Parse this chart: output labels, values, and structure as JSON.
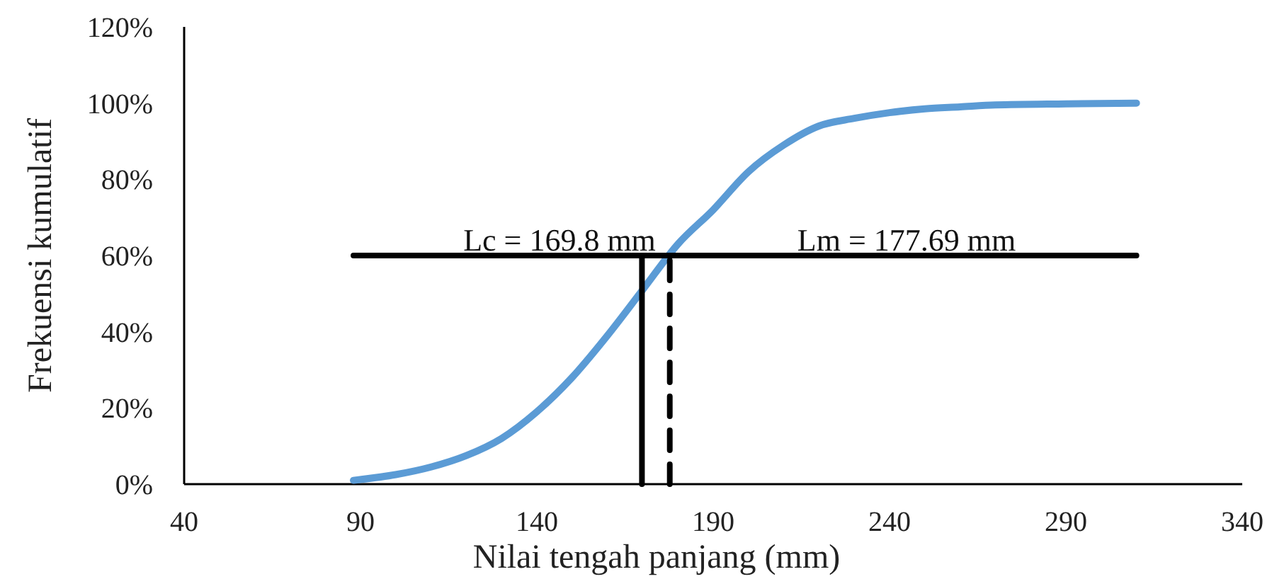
{
  "chart_data": {
    "type": "line",
    "xlabel": "Nilai tengah panjang (mm)",
    "ylabel": "Frekuensi kumulatif",
    "xlim": [
      40,
      340
    ],
    "xticks": [
      40,
      90,
      140,
      190,
      240,
      290,
      340
    ],
    "ylim": [
      0,
      120
    ],
    "yticks": [
      {
        "value": 0,
        "label": "0%"
      },
      {
        "value": 20,
        "label": "20%"
      },
      {
        "value": 40,
        "label": "40%"
      },
      {
        "value": 60,
        "label": "60%"
      },
      {
        "value": 80,
        "label": "80%"
      },
      {
        "value": 100,
        "label": "100%"
      },
      {
        "value": 120,
        "label": "120%"
      }
    ],
    "grid": false,
    "marker": "none",
    "series": [
      {
        "color": "#5b9bd5",
        "line_style": "solid",
        "x": [
          88,
          100,
          110,
          120,
          130,
          140,
          150,
          160,
          170,
          180,
          190,
          200,
          210,
          220,
          230,
          240,
          250,
          260,
          270,
          290,
          310
        ],
        "values": [
          1,
          2.5,
          4.5,
          7.5,
          12,
          19,
          28,
          39,
          51,
          63,
          72,
          82,
          89,
          94,
          96,
          97.5,
          98.5,
          99,
          99.5,
          99.8,
          100
        ]
      },
      {
        "color": "#000000",
        "line_style": "solid",
        "x": [
          88,
          310
        ],
        "values": [
          60,
          60
        ]
      },
      {
        "color": "#000000",
        "line_style": "solid",
        "x": [
          169.8,
          169.8
        ],
        "values": [
          0,
          60
        ]
      },
      {
        "color": "#000000",
        "line_style": "dashed",
        "x": [
          177.69,
          177.69
        ],
        "values": [
          0,
          60
        ]
      }
    ],
    "annotations": [
      "Lc = 169.8 mm",
      "Lm = 177.69 mm"
    ]
  }
}
